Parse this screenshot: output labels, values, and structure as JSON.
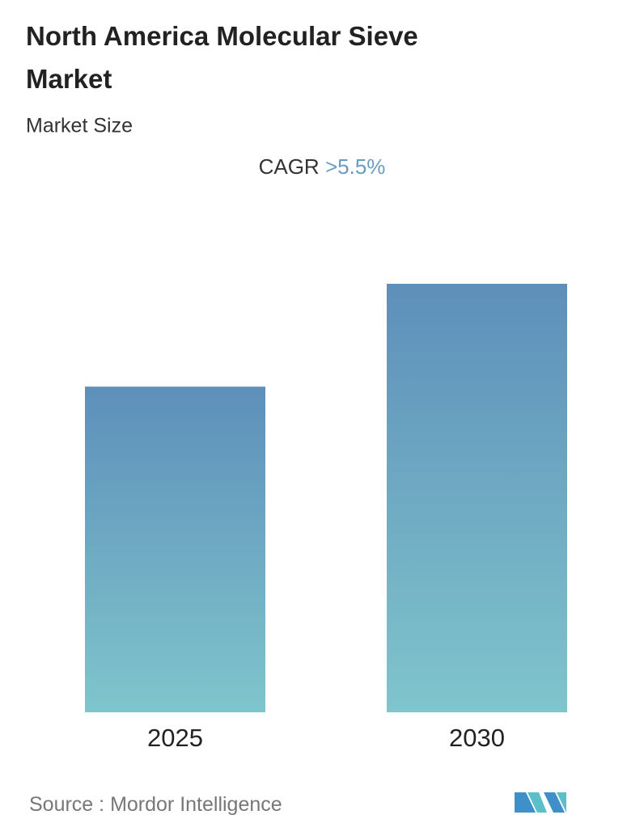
{
  "chart_data": {
    "type": "bar",
    "title": "North America Molecular Sieve Market",
    "subtitle": "Market Size",
    "cagr_label": "CAGR",
    "cagr_value": ">5.5%",
    "categories": [
      "2025",
      "2030"
    ],
    "values": [
      76,
      100
    ],
    "colors": [
      "#5e8fba",
      "#7fc5cc"
    ],
    "ylim": [
      0,
      100
    ],
    "source_label": "Source :",
    "source": "Mordor Intelligence"
  }
}
